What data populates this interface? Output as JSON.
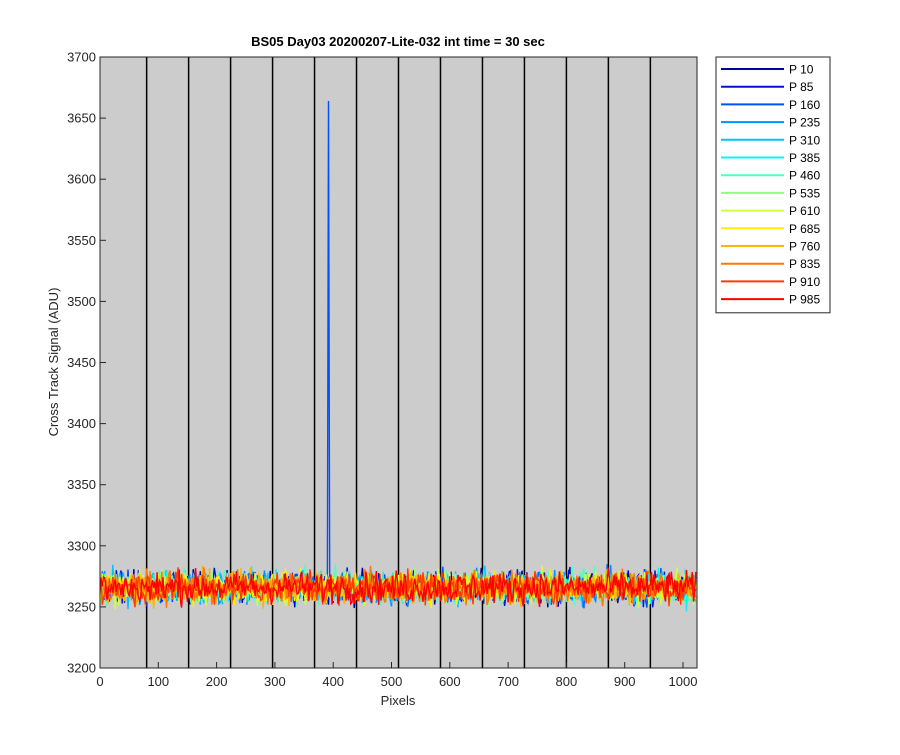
{
  "chart_data": {
    "type": "line",
    "title": "BS05 Day03 20200207-Lite-032 int time = 30 sec",
    "xlabel": "Pixels",
    "ylabel": "Cross Track Signal (ADU)",
    "xlim": [
      0,
      1024
    ],
    "ylim": [
      3200,
      3700
    ],
    "xticks": [
      0,
      100,
      200,
      300,
      400,
      500,
      600,
      700,
      800,
      900,
      1000
    ],
    "yticks": [
      3200,
      3250,
      3300,
      3350,
      3400,
      3450,
      3500,
      3550,
      3600,
      3650,
      3700
    ],
    "vertical_lines_x": [
      80,
      152,
      224,
      296,
      368,
      440,
      512,
      584,
      656,
      728,
      800,
      872,
      944
    ],
    "plot_background": "#cccccc",
    "legend_position": "outside-right",
    "series": [
      {
        "name": "P 10",
        "color": "#0000a8",
        "mean": 3266,
        "noise": 11
      },
      {
        "name": "P 85",
        "color": "#0014d8",
        "mean": 3266,
        "noise": 11
      },
      {
        "name": "P 160",
        "color": "#0050ff",
        "mean": 3266,
        "noise": 11,
        "spike": {
          "x": 392,
          "y": 3664
        }
      },
      {
        "name": "P 235",
        "color": "#0090ff",
        "mean": 3266,
        "noise": 11
      },
      {
        "name": "P 310",
        "color": "#00c4ff",
        "mean": 3266,
        "noise": 11
      },
      {
        "name": "P 385",
        "color": "#10f0f0",
        "mean": 3266,
        "noise": 11
      },
      {
        "name": "P 460",
        "color": "#50ffc0",
        "mean": 3266,
        "noise": 11
      },
      {
        "name": "P 535",
        "color": "#90ff80",
        "mean": 3266,
        "noise": 11
      },
      {
        "name": "P 610",
        "color": "#d0ff40",
        "mean": 3266,
        "noise": 11
      },
      {
        "name": "P 685",
        "color": "#ffee00",
        "mean": 3266,
        "noise": 11
      },
      {
        "name": "P 760",
        "color": "#ffb400",
        "mean": 3266,
        "noise": 11
      },
      {
        "name": "P 835",
        "color": "#ff7800",
        "mean": 3266,
        "noise": 11
      },
      {
        "name": "P 910",
        "color": "#ff3c00",
        "mean": 3266,
        "noise": 11
      },
      {
        "name": "P 985",
        "color": "#ff0000",
        "mean": 3266,
        "noise": 11
      }
    ]
  }
}
